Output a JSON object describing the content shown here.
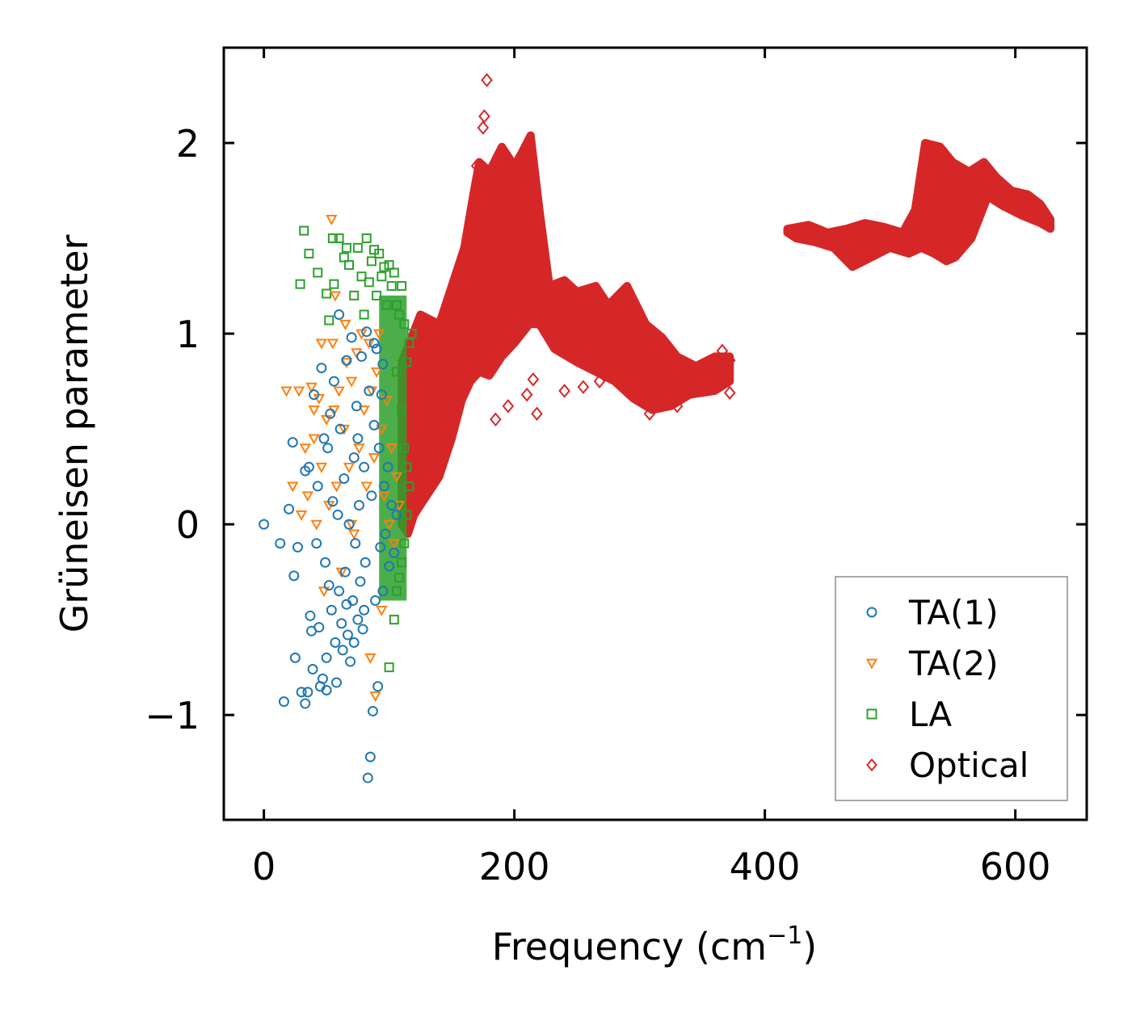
{
  "chart_data": {
    "type": "scatter",
    "title": "",
    "xlabel": "Frequency (cm",
    "xlabel_sup": "−1",
    "xlabel_suffix": ")",
    "ylabel": "Grüneisen parameter",
    "xlim": [
      -32,
      657
    ],
    "ylim": [
      -1.55,
      2.5
    ],
    "xticks": [
      0,
      200,
      400,
      600
    ],
    "xtick_labels": [
      "0",
      "200",
      "400",
      "600"
    ],
    "yticks": [
      -1,
      0,
      1,
      2
    ],
    "ytick_labels": [
      "−1",
      "0",
      "1",
      "2"
    ],
    "grid": false,
    "legend_position": "bottom-right",
    "series": [
      {
        "name": "TA(1)",
        "marker": "circle",
        "color": "#1f77b4",
        "points": [
          [
            0,
            0
          ],
          [
            13,
            -0.1
          ],
          [
            16,
            -0.93
          ],
          [
            20,
            0.08
          ],
          [
            23,
            0.43
          ],
          [
            24,
            -0.27
          ],
          [
            25,
            -0.7
          ],
          [
            27,
            -0.12
          ],
          [
            30,
            -0.88
          ],
          [
            33,
            0.28
          ],
          [
            33,
            -0.94
          ],
          [
            35,
            -0.88
          ],
          [
            36,
            0.3
          ],
          [
            37,
            -0.48
          ],
          [
            38,
            -0.56
          ],
          [
            39,
            -0.76
          ],
          [
            40,
            0.68
          ],
          [
            42,
            -0.1
          ],
          [
            43,
            0.2
          ],
          [
            44,
            -0.54
          ],
          [
            45,
            -0.85
          ],
          [
            46,
            0.82
          ],
          [
            47,
            -0.81
          ],
          [
            48,
            0.45
          ],
          [
            49,
            -0.2
          ],
          [
            50,
            -0.7
          ],
          [
            50,
            -0.87
          ],
          [
            51,
            0.4
          ],
          [
            52,
            -0.32
          ],
          [
            53,
            0.58
          ],
          [
            54,
            -0.45
          ],
          [
            55,
            0.12
          ],
          [
            56,
            0.75
          ],
          [
            57,
            -0.62
          ],
          [
            58,
            -0.83
          ],
          [
            59,
            0.05
          ],
          [
            60,
            -0.35
          ],
          [
            61,
            0.5
          ],
          [
            62,
            -0.52
          ],
          [
            63,
            -0.66
          ],
          [
            64,
            0.24
          ],
          [
            65,
            -0.25
          ],
          [
            66,
            0.86
          ],
          [
            67,
            -0.58
          ],
          [
            68,
            0.0
          ],
          [
            69,
            -0.72
          ],
          [
            70,
            0.98
          ],
          [
            71,
            -0.4
          ],
          [
            72,
            0.35
          ],
          [
            73,
            -0.1
          ],
          [
            74,
            0.62
          ],
          [
            75,
            -0.5
          ],
          [
            76,
            0.1
          ],
          [
            77,
            -0.3
          ],
          [
            78,
            0.88
          ],
          [
            79,
            -0.55
          ],
          [
            80,
            0.3
          ],
          [
            81,
            -0.2
          ],
          [
            82,
            1.01
          ],
          [
            83,
            -1.33
          ],
          [
            84,
            0.7
          ],
          [
            85,
            -1.22
          ],
          [
            86,
            0.15
          ],
          [
            87,
            -0.98
          ],
          [
            88,
            0.52
          ],
          [
            89,
            -0.4
          ],
          [
            90,
            0.92
          ],
          [
            91,
            -0.85
          ],
          [
            92,
            0.4
          ],
          [
            93,
            -0.12
          ],
          [
            94,
            0.68
          ],
          [
            95,
            -0.35
          ],
          [
            96,
            0.2
          ],
          [
            97,
            -0.05
          ],
          [
            99,
            0.3
          ],
          [
            100,
            -0.22
          ],
          [
            102,
            0.1
          ],
          [
            104,
            -0.15
          ],
          [
            106,
            0.05
          ],
          [
            60,
            1.1
          ],
          [
            75,
            0.45
          ],
          [
            88,
            0.95
          ],
          [
            95,
            0.84
          ],
          [
            66,
            -0.42
          ],
          [
            72,
            -0.62
          ],
          [
            80,
            -0.45
          ]
        ]
      },
      {
        "name": "TA(2)",
        "marker": "triangle-down",
        "color": "#ff7f0e",
        "points": [
          [
            18,
            0.7
          ],
          [
            23,
            0.2
          ],
          [
            28,
            0.7
          ],
          [
            30,
            0.05
          ],
          [
            33,
            0.4
          ],
          [
            35,
            0.15
          ],
          [
            38,
            0.72
          ],
          [
            40,
            0.45
          ],
          [
            42,
            0.0
          ],
          [
            44,
            0.66
          ],
          [
            46,
            0.3
          ],
          [
            48,
            -0.35
          ],
          [
            50,
            0.55
          ],
          [
            52,
            0.1
          ],
          [
            54,
            1.6
          ],
          [
            55,
            0.95
          ],
          [
            56,
            0.6
          ],
          [
            58,
            0.2
          ],
          [
            60,
            0.7
          ],
          [
            62,
            -0.25
          ],
          [
            64,
            0.5
          ],
          [
            65,
            1.05
          ],
          [
            66,
            0.85
          ],
          [
            68,
            0.3
          ],
          [
            70,
            0.75
          ],
          [
            72,
            -0.05
          ],
          [
            74,
            0.9
          ],
          [
            76,
            0.4
          ],
          [
            78,
            1.0
          ],
          [
            80,
            0.6
          ],
          [
            82,
            0.2
          ],
          [
            84,
            0.95
          ],
          [
            85,
            -0.7
          ],
          [
            86,
            0.7
          ],
          [
            88,
            0.35
          ],
          [
            90,
            0.8
          ],
          [
            92,
            1.0
          ],
          [
            94,
            0.5
          ],
          [
            96,
            0.15
          ],
          [
            98,
            0.65
          ],
          [
            100,
            0.0
          ],
          [
            102,
            0.4
          ],
          [
            104,
            -0.1
          ],
          [
            106,
            0.25
          ],
          [
            108,
            0.1
          ],
          [
            46,
            0.95
          ],
          [
            57,
            1.2
          ],
          [
            89,
            -0.9
          ],
          [
            94,
            -0.45
          ],
          [
            70,
            0.0
          ],
          [
            40,
            0.6
          ]
        ]
      },
      {
        "name": "LA",
        "marker": "square",
        "color": "#2ca02c",
        "points": [
          [
            29,
            1.26
          ],
          [
            32,
            1.54
          ],
          [
            36,
            1.42
          ],
          [
            43,
            1.32
          ],
          [
            50,
            1.21
          ],
          [
            52,
            1.07
          ],
          [
            55,
            1.5
          ],
          [
            56,
            1.26
          ],
          [
            60,
            1.5
          ],
          [
            64,
            1.4
          ],
          [
            66,
            1.45
          ],
          [
            68,
            1.36
          ],
          [
            72,
            1.2
          ],
          [
            75,
            1.45
          ],
          [
            78,
            1.3
          ],
          [
            80,
            1.1
          ],
          [
            82,
            1.5
          ],
          [
            84,
            1.27
          ],
          [
            86,
            1.38
          ],
          [
            88,
            1.44
          ],
          [
            90,
            1.2
          ],
          [
            92,
            1.42
          ],
          [
            94,
            1.3
          ],
          [
            96,
            1.35
          ],
          [
            98,
            1.15
          ],
          [
            100,
            1.36
          ],
          [
            102,
            1.25
          ],
          [
            104,
            1.32
          ],
          [
            106,
            1.15
          ],
          [
            108,
            1.1
          ],
          [
            110,
            1.25
          ],
          [
            112,
            1.05
          ],
          [
            114,
            0.85
          ],
          [
            116,
            0.95
          ],
          [
            118,
            1.0
          ],
          [
            100,
            -0.75
          ],
          [
            104,
            -0.5
          ],
          [
            106,
            -0.35
          ],
          [
            108,
            -0.28
          ],
          [
            110,
            -0.2
          ],
          [
            112,
            -0.1
          ],
          [
            114,
            0.05
          ],
          [
            110,
            0.6
          ],
          [
            112,
            0.4
          ],
          [
            114,
            0.3
          ],
          [
            116,
            0.2
          ],
          [
            106,
            0.8
          ]
        ],
        "bands": [
          {
            "x": [
              92,
              114
            ],
            "y": [
              -0.4,
              1.2
            ]
          }
        ]
      },
      {
        "name": "Optical",
        "marker": "diamond",
        "color": "#d62728",
        "upper": [
          [
            110,
            0.85
          ],
          [
            125,
            1.1
          ],
          [
            140,
            1.05
          ],
          [
            150,
            1.25
          ],
          [
            160,
            1.45
          ],
          [
            167,
            1.72
          ],
          [
            172,
            1.9
          ],
          [
            180,
            1.85
          ],
          [
            190,
            1.98
          ],
          [
            200,
            1.88
          ],
          [
            206,
            1.95
          ],
          [
            213,
            2.04
          ],
          [
            220,
            1.65
          ],
          [
            228,
            1.25
          ],
          [
            240,
            1.28
          ],
          [
            250,
            1.22
          ],
          [
            265,
            1.25
          ],
          [
            275,
            1.15
          ],
          [
            290,
            1.25
          ],
          [
            305,
            1.05
          ],
          [
            318,
            0.98
          ],
          [
            330,
            0.88
          ],
          [
            345,
            0.83
          ],
          [
            360,
            0.88
          ],
          [
            372,
            0.88
          ],
          [
            372,
            0.8
          ]
        ],
        "lower": [
          [
            372,
            0.75
          ],
          [
            360,
            0.7
          ],
          [
            340,
            0.68
          ],
          [
            325,
            0.62
          ],
          [
            310,
            0.6
          ],
          [
            295,
            0.66
          ],
          [
            280,
            0.75
          ],
          [
            265,
            0.8
          ],
          [
            250,
            0.85
          ],
          [
            232,
            0.92
          ],
          [
            220,
            1.05
          ],
          [
            212,
            1.05
          ],
          [
            200,
            0.95
          ],
          [
            190,
            0.88
          ],
          [
            180,
            0.78
          ],
          [
            172,
            0.8
          ],
          [
            165,
            0.75
          ],
          [
            158,
            0.65
          ],
          [
            150,
            0.45
          ],
          [
            140,
            0.25
          ],
          [
            130,
            0.15
          ],
          [
            120,
            0.05
          ],
          [
            115,
            -0.05
          ],
          [
            110,
            0.0
          ]
        ],
        "upper2": [
          [
            418,
            1.55
          ],
          [
            435,
            1.57
          ],
          [
            450,
            1.53
          ],
          [
            465,
            1.55
          ],
          [
            480,
            1.58
          ],
          [
            495,
            1.56
          ],
          [
            510,
            1.53
          ],
          [
            520,
            1.65
          ],
          [
            528,
            2.0
          ],
          [
            540,
            1.98
          ],
          [
            550,
            1.9
          ],
          [
            563,
            1.85
          ],
          [
            575,
            1.9
          ],
          [
            585,
            1.82
          ],
          [
            597,
            1.75
          ],
          [
            610,
            1.73
          ],
          [
            620,
            1.68
          ],
          [
            628,
            1.6
          ]
        ],
        "lower2": [
          [
            628,
            1.55
          ],
          [
            620,
            1.58
          ],
          [
            605,
            1.62
          ],
          [
            590,
            1.67
          ],
          [
            578,
            1.72
          ],
          [
            565,
            1.5
          ],
          [
            552,
            1.4
          ],
          [
            545,
            1.38
          ],
          [
            535,
            1.42
          ],
          [
            525,
            1.45
          ],
          [
            515,
            1.42
          ],
          [
            500,
            1.45
          ],
          [
            485,
            1.4
          ],
          [
            470,
            1.35
          ],
          [
            455,
            1.45
          ],
          [
            440,
            1.48
          ],
          [
            425,
            1.5
          ],
          [
            418,
            1.53
          ]
        ],
        "outliers": [
          [
            178,
            2.33
          ],
          [
            176,
            2.14
          ],
          [
            175,
            2.08
          ],
          [
            170,
            1.88
          ],
          [
            188,
            1.72
          ],
          [
            205,
            1.6
          ],
          [
            232,
            1.18
          ],
          [
            250,
            1.12
          ],
          [
            185,
            0.55
          ],
          [
            195,
            0.62
          ],
          [
            210,
            0.68
          ],
          [
            215,
            0.76
          ],
          [
            218,
            0.58
          ],
          [
            240,
            0.7
          ],
          [
            255,
            0.72
          ],
          [
            268,
            0.75
          ],
          [
            308,
            0.58
          ],
          [
            330,
            0.62
          ],
          [
            365,
            0.78
          ],
          [
            372,
            0.69
          ],
          [
            366,
            0.91
          ],
          [
            372,
            0.86
          ]
        ]
      }
    ]
  }
}
